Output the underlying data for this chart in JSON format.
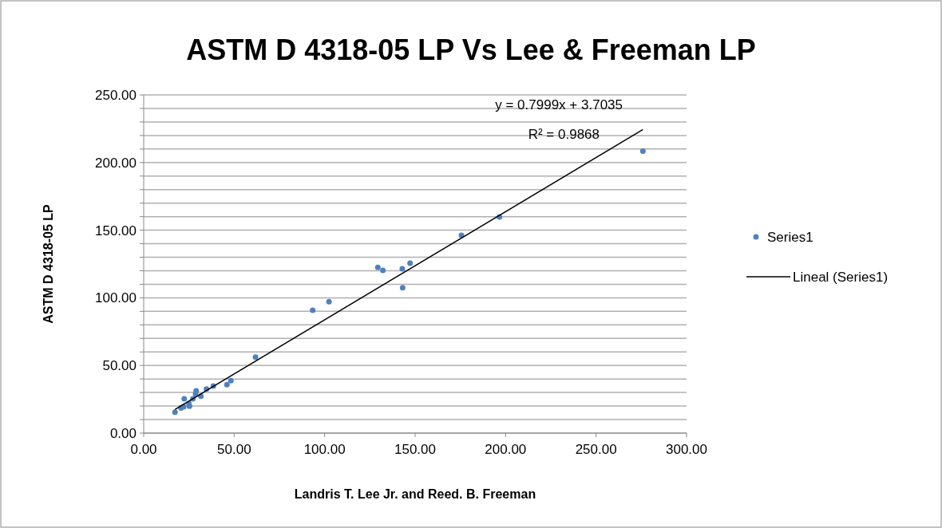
{
  "chart_data": {
    "type": "scatter",
    "title": "ASTM D 4318-05 LP Vs Lee & Freeman LP",
    "xlabel": "Landris T. Lee Jr. and Reed. B. Freeman",
    "ylabel": "ASTM D 4318-05 LP",
    "xlim": [
      0,
      300
    ],
    "xticks": [
      {
        "value": 0,
        "label": "0.00"
      },
      {
        "value": 50,
        "label": "50.00"
      },
      {
        "value": 100,
        "label": "100.00"
      },
      {
        "value": 150,
        "label": "150.00"
      },
      {
        "value": 200,
        "label": "200.00"
      },
      {
        "value": 250,
        "label": "250.00"
      },
      {
        "value": 300,
        "label": "300.00"
      }
    ],
    "ylim": [
      0,
      250
    ],
    "yticks": [
      {
        "value": 0,
        "label": "0.00"
      },
      {
        "value": 10,
        "label": null
      },
      {
        "value": 20,
        "label": null
      },
      {
        "value": 30,
        "label": null
      },
      {
        "value": 40,
        "label": null
      },
      {
        "value": 50,
        "label": "50.00"
      },
      {
        "value": 60,
        "label": null
      },
      {
        "value": 70,
        "label": null
      },
      {
        "value": 80,
        "label": null
      },
      {
        "value": 90,
        "label": null
      },
      {
        "value": 100,
        "label": "100.00"
      },
      {
        "value": 110,
        "label": null
      },
      {
        "value": 120,
        "label": null
      },
      {
        "value": 130,
        "label": null
      },
      {
        "value": 140,
        "label": null
      },
      {
        "value": 150,
        "label": "150.00"
      },
      {
        "value": 160,
        "label": null
      },
      {
        "value": 170,
        "label": null
      },
      {
        "value": 180,
        "label": null
      },
      {
        "value": 190,
        "label": null
      },
      {
        "value": 200,
        "label": "200.00"
      },
      {
        "value": 210,
        "label": null
      },
      {
        "value": 220,
        "label": null
      },
      {
        "value": 230,
        "label": null
      },
      {
        "value": 240,
        "label": null
      },
      {
        "value": 250,
        "label": "250.00"
      }
    ],
    "grid": "y",
    "legend": "right",
    "marker": "circle",
    "annotations": [
      "y = 0.7999x + 3.7035",
      "R² = 0.9868"
    ],
    "series": [
      {
        "name": "Series1",
        "color": "#4f81bd",
        "x": [
          17.3,
          20.6,
          22.1,
          22.4,
          25.3,
          25.0,
          27.2,
          29.0,
          28.7,
          31.6,
          34.7,
          38.5,
          46.0,
          48.2,
          61.8,
          93.4,
          102.4,
          129.4,
          132.2,
          142.9,
          143.1,
          147.2,
          175.6,
          196.6,
          275.9
        ],
        "values": [
          15.5,
          18.5,
          19.5,
          25.4,
          19.9,
          21.8,
          25.4,
          31.3,
          28.9,
          27.3,
          32.6,
          34.8,
          35.8,
          38.7,
          56.2,
          90.8,
          97.1,
          122.5,
          120.3,
          121.5,
          107.5,
          125.6,
          146.2,
          159.8,
          208.5
        ]
      },
      {
        "name": "Lineal (Series1)",
        "type": "line",
        "color": "#000000",
        "line_style": "solid",
        "marker": "none",
        "x": [
          17.3,
          275.9
        ],
        "values": [
          17.5,
          224.4
        ]
      }
    ]
  }
}
